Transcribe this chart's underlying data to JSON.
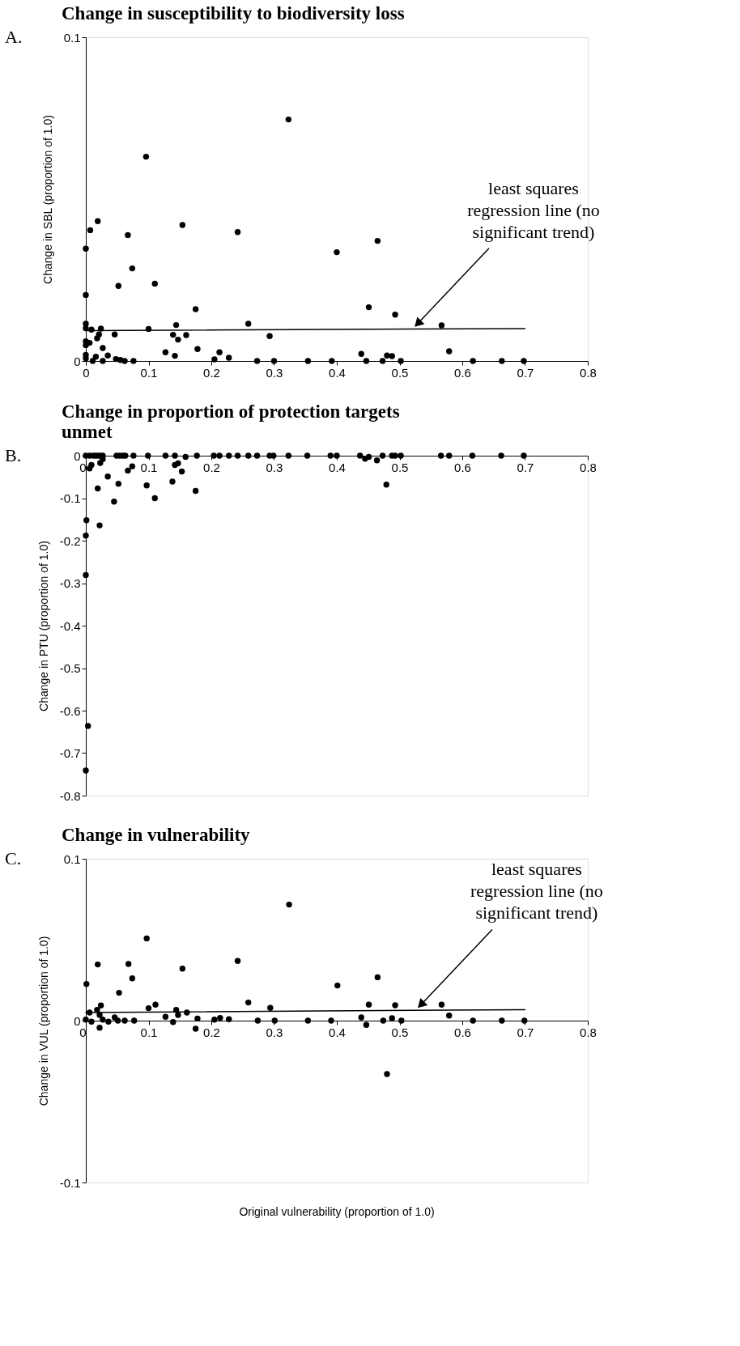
{
  "chart_data": [
    {
      "type": "scatter",
      "title": "Change in susceptibility to biodiversity loss",
      "ylabel": "Change in SBL (proportion of 1.0)",
      "xlim": [
        0,
        0.8
      ],
      "xticks": [
        0,
        0.1,
        0.2,
        0.3,
        0.4,
        0.5,
        0.6,
        0.7,
        0.8
      ],
      "ylim": [
        0,
        0.1
      ],
      "yticks": [
        0,
        0.1
      ],
      "grid": false,
      "annotations": [
        "A.",
        {
          "text": "least squares regression line (no significant trend)",
          "x": 0.52,
          "y": 0.0098
        }
      ],
      "series": [
        {
          "marker": "circle",
          "color": "#000000",
          "x": [
            0.323,
            0.096,
            0.019,
            0.007,
            0.154,
            0.067,
            0.242,
            0.465,
            0,
            0.4,
            0.074,
            0.052,
            0.11,
            0,
            0.175,
            0.451,
            0.493,
            0.567,
            0.259,
            0.144,
            0,
            0,
            0.009,
            0.024,
            0.021,
            0.018,
            0.046,
            0.1,
            0.139,
            0.147,
            0.16,
            0.293,
            0,
            0.006,
            0,
            0.027,
            0.035,
            0.016,
            0,
            0,
            0.011,
            0.027,
            0.048,
            0.055,
            0.062,
            0.076,
            0.127,
            0.142,
            0.178,
            0.205,
            0.213,
            0.228,
            0.273,
            0.3,
            0.354,
            0.392,
            0.439,
            0.447,
            0.473,
            0.48,
            0.488,
            0.502,
            0.579,
            0.617,
            0.663,
            0.698
          ],
          "values": [
            0.0746,
            0.0631,
            0.0432,
            0.0404,
            0.042,
            0.0389,
            0.0398,
            0.0371,
            0.0347,
            0.0336,
            0.0286,
            0.0232,
            0.0239,
            0.0204,
            0.016,
            0.0166,
            0.0143,
            0.011,
            0.0115,
            0.0111,
            0.0115,
            0.0101,
            0.0097,
            0.01,
            0.0082,
            0.007,
            0.0082,
            0.0099,
            0.0081,
            0.0066,
            0.008,
            0.0077,
            0.0061,
            0.0056,
            0.0049,
            0.004,
            0.0017,
            0.0013,
            0.0019,
            0.0008,
            0,
            0,
            0.0006,
            0.0003,
            0,
            0,
            0.0027,
            0.0016,
            0.0037,
            0.0005,
            0.0027,
            0.001,
            0,
            0,
            0,
            0,
            0.0022,
            0,
            0,
            0.0017,
            0.0015,
            0,
            0.003,
            0,
            0,
            0
          ]
        },
        {
          "type": "line",
          "color": "#000000",
          "x": [
            0,
            0.7
          ],
          "values": [
            0.0094,
            0.01
          ]
        }
      ]
    },
    {
      "type": "scatter",
      "title": "Change in proportion of protection targets unmet",
      "ylabel": "Change in PTU (proportion of 1.0)",
      "xlim": [
        0,
        0.8
      ],
      "xticks": [
        0,
        0.1,
        0.2,
        0.3,
        0.4,
        0.5,
        0.6,
        0.7,
        0.8
      ],
      "ylim": [
        -0.8,
        0
      ],
      "yticks": [
        -0.8,
        -0.7,
        -0.6,
        -0.5,
        -0.4,
        -0.3,
        -0.2,
        -0.1,
        0
      ],
      "grid": false,
      "annotations": [
        "B."
      ],
      "series": [
        {
          "marker": "circle",
          "color": "#000000",
          "x": [
            0,
            0.006,
            0.012,
            0.016,
            0.02,
            0.024,
            0.027,
            0.049,
            0.054,
            0.059,
            0.063,
            0.076,
            0.099,
            0.127,
            0.142,
            0.177,
            0.204,
            0.213,
            0.228,
            0.242,
            0.259,
            0.273,
            0.293,
            0.299,
            0.323,
            0.353,
            0.39,
            0.4,
            0.437,
            0.473,
            0.488,
            0.493,
            0.502,
            0.566,
            0.579,
            0.616,
            0.662,
            0.698,
            0.006,
            0.009,
            0.023,
            0.027,
            0.035,
            0.019,
            0.045,
            0.052,
            0.067,
            0.074,
            0.097,
            0.11,
            0.138,
            0.142,
            0.147,
            0.153,
            0.175,
            0.159,
            0.445,
            0.451,
            0.464,
            0.479,
            0.001,
            0.022,
            0,
            0,
            0.0035,
            0
          ],
          "values": [
            0,
            0,
            0,
            0,
            0,
            0,
            0,
            0,
            0,
            0,
            0,
            0,
            0,
            0,
            0,
            0,
            0,
            0,
            0,
            0,
            0,
            0,
            0,
            0,
            0,
            0,
            0,
            0,
            0,
            0,
            0,
            0,
            0,
            0,
            0,
            0,
            0,
            0,
            -0.03,
            -0.022,
            -0.017,
            -0.008,
            -0.049,
            -0.077,
            -0.108,
            -0.066,
            -0.035,
            -0.025,
            -0.07,
            -0.1,
            -0.061,
            -0.022,
            -0.018,
            -0.037,
            -0.083,
            -0.003,
            -0.007,
            -0.003,
            -0.011,
            -0.068,
            -0.152,
            -0.164,
            -0.188,
            -0.281,
            -0.636,
            -0.741
          ]
        }
      ]
    },
    {
      "type": "scatter",
      "title": "Change in vulnerability",
      "xlabel": "Original vulnerability (proportion of 1.0)",
      "ylabel": "Change in VUL  (proportion of 1.0)",
      "xlim": [
        0,
        0.8
      ],
      "xticks": [
        0,
        0.1,
        0.2,
        0.3,
        0.4,
        0.5,
        0.6,
        0.7,
        0.8
      ],
      "ylim": [
        -0.1,
        0.1
      ],
      "yticks": [
        -0.1,
        0,
        0.1
      ],
      "grid": false,
      "annotations": [
        "C.",
        {
          "text": "least squares regression line (no significant trend)",
          "x": 0.525,
          "y": 0.0063
        }
      ],
      "series": [
        {
          "marker": "circle",
          "color": "#000000",
          "x": [
            0.324,
            0.097,
            0.019,
            0.068,
            0.242,
            0.154,
            0.074,
            0.001,
            0.465,
            0.401,
            0.053,
            0.259,
            0.111,
            0.451,
            0.493,
            0.567,
            0.024,
            0.1,
            0.294,
            0.144,
            0.018,
            0.006,
            0.161,
            0.147,
            0.022,
            0.579,
            0.439,
            0.127,
            0.046,
            0.488,
            0,
            0.178,
            0.214,
            0.228,
            0.205,
            0.027,
            0.009,
            0.036,
            0.051,
            0.062,
            0.077,
            0.139,
            0.274,
            0.301,
            0.354,
            0.391,
            0.474,
            0.503,
            0.617,
            0.663,
            0.699,
            0.447,
            0.022,
            0.175,
            0.48
          ],
          "values": [
            0.0717,
            0.0508,
            0.0347,
            0.035,
            0.0369,
            0.0321,
            0.0261,
            0.0226,
            0.0268,
            0.0217,
            0.0172,
            0.0112,
            0.0099,
            0.0099,
            0.0095,
            0.0099,
            0.0094,
            0.0077,
            0.0079,
            0.0066,
            0.0066,
            0.005,
            0.005,
            0.0035,
            0.0035,
            0.0031,
            0.002,
            0.0024,
            0.002,
            0.0015,
            0.0006,
            0.0013,
            0.0017,
            0.0009,
            0.0006,
            0.0006,
            -0.0006,
            -0.0006,
            0,
            0,
            0,
            -0.0009,
            0,
            0,
            0,
            0,
            0,
            0,
            0,
            0,
            0,
            -0.0026,
            -0.0044,
            -0.005,
            -0.033
          ]
        },
        {
          "type": "line",
          "color": "#000000",
          "x": [
            0,
            0.7
          ],
          "values": [
            0.005,
            0.0068
          ]
        }
      ]
    }
  ]
}
